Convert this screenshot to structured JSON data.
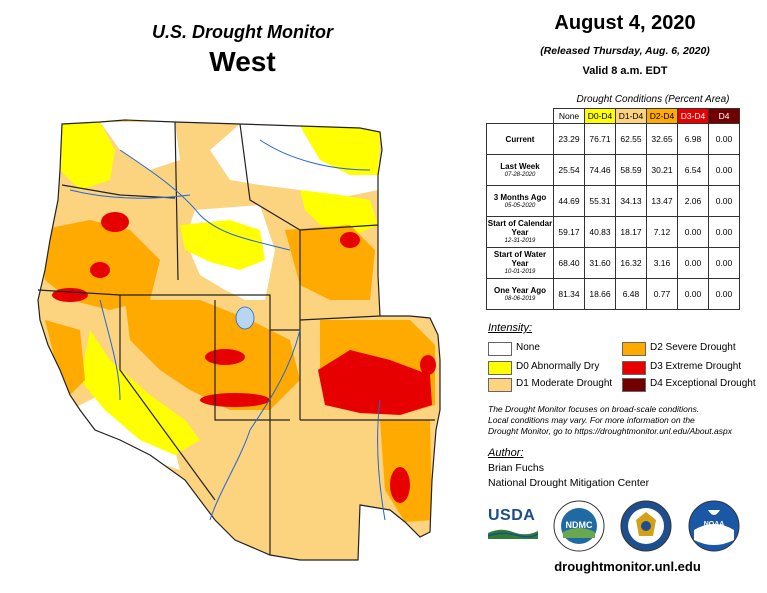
{
  "header": {
    "product": "U.S. Drought Monitor",
    "region": "West",
    "date": "August 4, 2020",
    "released": "(Released Thursday, Aug. 6, 2020)",
    "valid": "Valid 8 a.m. EDT"
  },
  "table": {
    "caption": "Drought Conditions (Percent Area)",
    "columns": [
      "None",
      "D0-D4",
      "D1-D4",
      "D2-D4",
      "D3-D4",
      "D4"
    ],
    "column_colors": [
      "#ffffff",
      "#ffff00",
      "#fcd37f",
      "#ffaa00",
      "#e60000",
      "#730000"
    ],
    "column_text_colors": [
      "#000000",
      "#000000",
      "#000000",
      "#000000",
      "#ffffff",
      "#ffffff"
    ],
    "rows": [
      {
        "label": "Current",
        "sub": "",
        "values": [
          "23.29",
          "76.71",
          "62.55",
          "32.65",
          "6.98",
          "0.00"
        ]
      },
      {
        "label": "Last Week",
        "sub": "07-28-2020",
        "values": [
          "25.54",
          "74.46",
          "58.59",
          "30.21",
          "6.54",
          "0.00"
        ]
      },
      {
        "label": "3 Months Ago",
        "sub": "05-05-2020",
        "values": [
          "44.69",
          "55.31",
          "34.13",
          "13.47",
          "2.06",
          "0.00"
        ]
      },
      {
        "label": "Start of Calendar Year",
        "sub": "12-31-2019",
        "values": [
          "59.17",
          "40.83",
          "18.17",
          "7.12",
          "0.00",
          "0.00"
        ]
      },
      {
        "label": "Start of Water Year",
        "sub": "10-01-2019",
        "values": [
          "68.40",
          "31.60",
          "16.32",
          "3.16",
          "0.00",
          "0.00"
        ]
      },
      {
        "label": "One Year Ago",
        "sub": "08-06-2019",
        "values": [
          "81.34",
          "18.66",
          "6.48",
          "0.77",
          "0.00",
          "0.00"
        ]
      }
    ]
  },
  "legend": {
    "title": "Intensity:",
    "items": [
      {
        "label": "None",
        "color": "#ffffff"
      },
      {
        "label": "D0 Abnormally Dry",
        "color": "#ffff00"
      },
      {
        "label": "D1 Moderate Drought",
        "color": "#fcd37f"
      },
      {
        "label": "D2 Severe Drought",
        "color": "#ffaa00"
      },
      {
        "label": "D3 Extreme Drought",
        "color": "#e60000"
      },
      {
        "label": "D4 Exceptional Drought",
        "color": "#730000"
      }
    ]
  },
  "note": {
    "line1": "The Drought Monitor focuses on broad-scale conditions.",
    "line2": "Local conditions may vary. For more information on the",
    "line3": "Drought Monitor, go to https://droughtmonitor.unl.edu/About.aspx"
  },
  "author": {
    "heading": "Author:",
    "name": "Brian Fuchs",
    "org": "National Drought Mitigation Center"
  },
  "logos": {
    "usda": "USDA",
    "ndmc": "NDMC",
    "noaa": "NOAA"
  },
  "url": "droughtmonitor.unl.edu"
}
